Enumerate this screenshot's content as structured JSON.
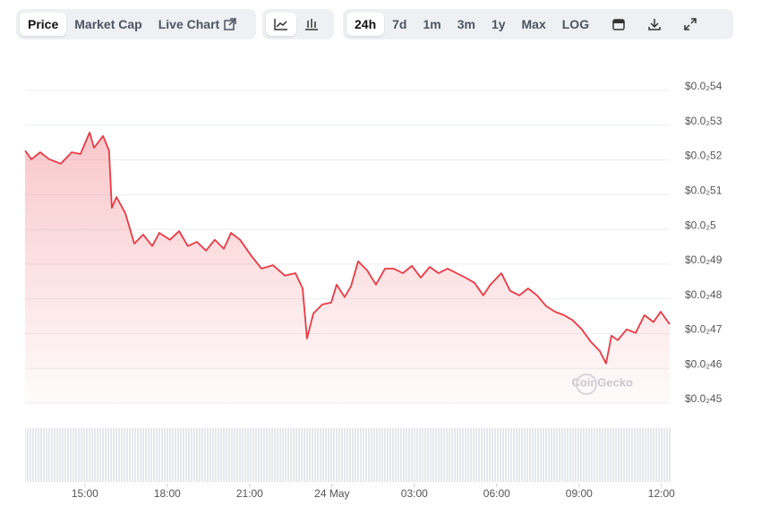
{
  "toolbar": {
    "view_tabs": [
      "Price",
      "Market Cap",
      "Live Chart"
    ],
    "active_view": "Price",
    "range_tabs": [
      "24h",
      "7d",
      "1m",
      "3m",
      "1y",
      "Max",
      "LOG"
    ],
    "active_range": "24h"
  },
  "chart_data": {
    "type": "line",
    "color": "#ea3943",
    "grid": true,
    "watermark": "CoinGecko",
    "x": [
      12.82,
      13.05,
      13.37,
      13.7,
      14.12,
      14.52,
      14.84,
      15.17,
      15.33,
      15.66,
      15.88,
      15.98,
      16.15,
      16.47,
      16.8,
      17.12,
      17.45,
      17.71,
      18.1,
      18.43,
      18.75,
      19.08,
      19.41,
      19.73,
      20.06,
      20.32,
      20.65,
      21.04,
      21.43,
      21.85,
      22.28,
      22.67,
      22.93,
      23.09,
      23.32,
      23.65,
      23.97,
      24.17,
      24.46,
      24.69,
      24.95,
      25.28,
      25.6,
      25.93,
      26.25,
      26.58,
      26.91,
      27.23,
      27.56,
      27.88,
      28.21,
      28.54,
      28.86,
      29.19,
      29.51,
      29.77,
      30.17,
      30.49,
      30.82,
      31.14,
      31.47,
      31.8,
      32.12,
      32.45,
      32.77,
      33.1,
      33.43,
      33.75,
      33.98,
      34.18,
      34.41,
      34.73,
      35.06,
      35.38,
      35.71,
      35.97,
      36.3
    ],
    "values": [
      0.005227,
      0.005202,
      0.005222,
      0.005202,
      0.005189,
      0.005222,
      0.005217,
      0.005279,
      0.005235,
      0.005269,
      0.005227,
      0.005062,
      0.005093,
      0.005047,
      0.004959,
      0.004985,
      0.004952,
      0.00499,
      0.00497,
      0.004995,
      0.004952,
      0.004964,
      0.004939,
      0.00497,
      0.004944,
      0.00499,
      0.00497,
      0.004926,
      0.004887,
      0.004897,
      0.004867,
      0.004874,
      0.00483,
      0.004686,
      0.004758,
      0.004784,
      0.004789,
      0.004841,
      0.004805,
      0.004836,
      0.004908,
      0.004882,
      0.004841,
      0.004887,
      0.004887,
      0.004874,
      0.004895,
      0.004861,
      0.004892,
      0.004874,
      0.004887,
      0.004874,
      0.004861,
      0.004846,
      0.00481,
      0.004841,
      0.004874,
      0.004823,
      0.00481,
      0.00483,
      0.00481,
      0.004779,
      0.004763,
      0.004753,
      0.004738,
      0.004712,
      0.004676,
      0.00465,
      0.004614,
      0.004694,
      0.004681,
      0.004712,
      0.004702,
      0.004753,
      0.004733,
      0.004763,
      0.004727
    ],
    "xlim": [
      12.82,
      36.3
    ],
    "xticks": [
      {
        "value": 15,
        "label": "15:00"
      },
      {
        "value": 18,
        "label": "18:00"
      },
      {
        "value": 21,
        "label": "21:00"
      },
      {
        "value": 24,
        "label": "24 May"
      },
      {
        "value": 27,
        "label": "03:00"
      },
      {
        "value": 30,
        "label": "06:00"
      },
      {
        "value": 33,
        "label": "09:00"
      },
      {
        "value": 36,
        "label": "12:00"
      }
    ],
    "ylim": [
      0.0045,
      0.0054
    ],
    "yticks": [
      {
        "value": 0.0054,
        "label": "$0.0₂54"
      },
      {
        "value": 0.0053,
        "label": "$0.0₂53"
      },
      {
        "value": 0.0052,
        "label": "$0.0₂52"
      },
      {
        "value": 0.0051,
        "label": "$0.0₂51"
      },
      {
        "value": 0.005,
        "label": "$0.0₂5"
      },
      {
        "value": 0.0049,
        "label": "$0.0₂49"
      },
      {
        "value": 0.0048,
        "label": "$0.0₂48"
      },
      {
        "value": 0.0047,
        "label": "$0.0₂47"
      },
      {
        "value": 0.0046,
        "label": "$0.0₂46"
      },
      {
        "value": 0.0045,
        "label": "$0.0₂45"
      }
    ]
  }
}
